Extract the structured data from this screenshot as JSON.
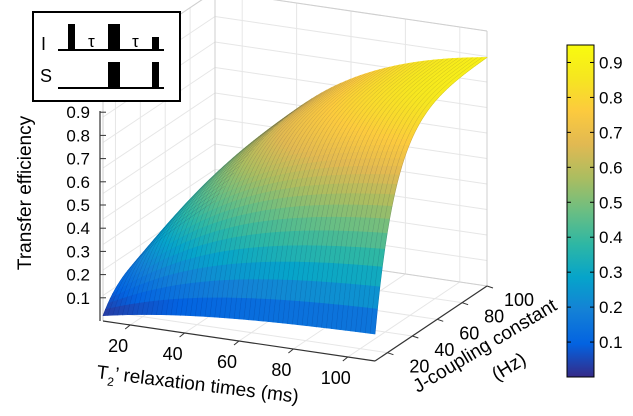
{
  "chart_data": {
    "type": "surface",
    "title": "",
    "xlabel_main": "T",
    "xlabel_sub": "2",
    "xlabel_rest": "’ relaxation times (ms)",
    "ylabel_line1": "J-coupling constant",
    "ylabel_line2": "(Hz)",
    "zlabel": "Transfer efficiency",
    "x_range": [
      10,
      110
    ],
    "y_range": [
      10,
      100
    ],
    "z_range": [
      0,
      1
    ],
    "x_ticks": [
      "20",
      "40",
      "60",
      "80",
      "100"
    ],
    "y_ticks": [
      "20",
      "40",
      "60",
      "80",
      "100"
    ],
    "z_ticks": [
      "0.1",
      "0.2",
      "0.3",
      "0.4",
      "0.5",
      "0.6",
      "0.7",
      "0.8",
      "0.9"
    ],
    "colorbar_ticks": [
      "0.1",
      "0.2",
      "0.3",
      "0.4",
      "0.5",
      "0.6",
      "0.7",
      "0.8",
      "0.9"
    ],
    "colorbar_range": [
      0,
      0.95
    ],
    "colormap": "parula",
    "samples": [
      {
        "x": 10,
        "y": 10,
        "z": 0.0
      },
      {
        "x": 110,
        "y": 10,
        "z": 0.1
      },
      {
        "x": 10,
        "y": 100,
        "z": 0.0
      },
      {
        "x": 50,
        "y": 100,
        "z": 0.85
      },
      {
        "x": 110,
        "y": 100,
        "z": 0.95
      }
    ]
  },
  "inset": {
    "channel_i": "I",
    "channel_s": "S",
    "delay_1": "τ",
    "delay_2": "τ"
  }
}
